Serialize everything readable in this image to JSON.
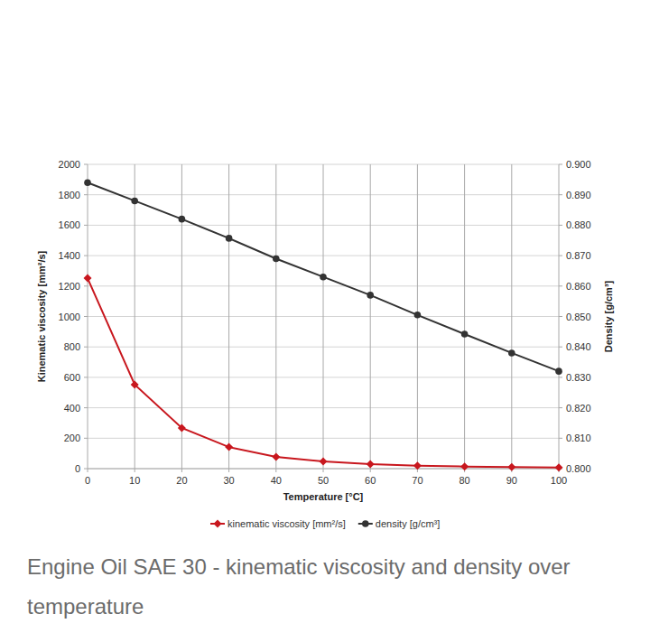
{
  "chart_data": {
    "type": "line",
    "title": "Engine Oil SAE 30 - kinematic viscosity and density over temperature",
    "x_label": "Temperature [°C]",
    "y_label": "Kinematic viscosity [mm²/s]",
    "y2_label": "Density [g/cm³]",
    "x": [
      0,
      10,
      20,
      30,
      40,
      50,
      60,
      70,
      80,
      90,
      100
    ],
    "xlim": [
      0,
      100
    ],
    "xticks": [
      0,
      10,
      20,
      30,
      40,
      50,
      60,
      70,
      80,
      90,
      100
    ],
    "ylim": [
      0,
      2000
    ],
    "yticks": [
      0,
      200,
      400,
      600,
      800,
      1000,
      1200,
      1400,
      1600,
      1800,
      2000
    ],
    "y2lim": [
      0.8,
      0.9
    ],
    "y2ticks": [
      {
        "value": 0.8,
        "label": "0.800"
      },
      {
        "value": 0.81,
        "label": "0.810"
      },
      {
        "value": 0.82,
        "label": "0.820"
      },
      {
        "value": 0.83,
        "label": "0.830"
      },
      {
        "value": 0.84,
        "label": "0.840"
      },
      {
        "value": 0.85,
        "label": "0.850"
      },
      {
        "value": 0.86,
        "label": "0.860"
      },
      {
        "value": 0.87,
        "label": "0.870"
      },
      {
        "value": 0.88,
        "label": "0.880"
      },
      {
        "value": 0.89,
        "label": "0.890"
      },
      {
        "value": 0.9,
        "label": "0.900"
      }
    ],
    "grid": true,
    "legend": "bottom",
    "series": [
      {
        "name": "kinematic viscosity [mm²/s]",
        "color": "#c8171e",
        "marker": "diamond",
        "line_style": "solid",
        "values": [
          1252,
          552,
          267,
          142,
          77,
          47,
          30,
          20,
          14,
          10,
          8
        ]
      },
      {
        "name": "density [g/cm³]",
        "color": "#333333",
        "marker": "circle",
        "line_style": "solid",
        "axis": "y2",
        "values": [
          0.894,
          0.888,
          0.882,
          0.8757,
          0.869,
          0.863,
          0.857,
          0.8505,
          0.8442,
          0.838,
          0.832
        ]
      }
    ]
  }
}
